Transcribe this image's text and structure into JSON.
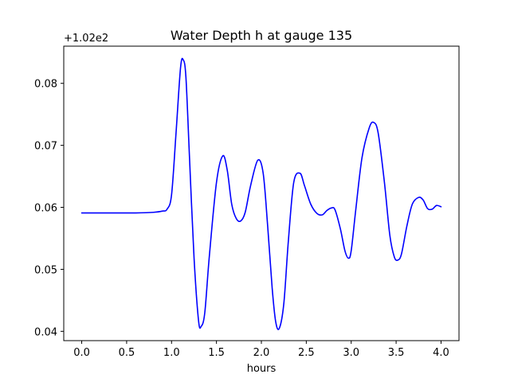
{
  "chart_data": {
    "type": "line",
    "title": "Water Depth h at gauge 135",
    "xlabel": "hours",
    "ylabel": "",
    "y_offset_label": "+1.02e2",
    "xlim": [
      -0.2,
      4.2
    ],
    "ylim": [
      0.0385,
      0.086
    ],
    "x_ticks": [
      0.0,
      0.5,
      1.0,
      1.5,
      2.0,
      2.5,
      3.0,
      3.5,
      4.0
    ],
    "x_tick_labels": [
      "0.0",
      "0.5",
      "1.0",
      "1.5",
      "2.0",
      "2.5",
      "3.0",
      "3.5",
      "4.0"
    ],
    "y_ticks": [
      0.04,
      0.05,
      0.06,
      0.07,
      0.08
    ],
    "y_tick_labels": [
      "0.04",
      "0.05",
      "0.06",
      "0.07",
      "0.08"
    ],
    "grid": false,
    "legend": "none",
    "line_color": "#0000ff",
    "series": [
      {
        "x": [
          0.0,
          0.2,
          0.4,
          0.6,
          0.8,
          0.9,
          0.95,
          1.0,
          1.05,
          1.1,
          1.13,
          1.16,
          1.2,
          1.25,
          1.3,
          1.33,
          1.37,
          1.42,
          1.5,
          1.57,
          1.62,
          1.67,
          1.72,
          1.77,
          1.82,
          1.88,
          1.96,
          2.02,
          2.07,
          2.12,
          2.16,
          2.2,
          2.25,
          2.3,
          2.36,
          2.43,
          2.48,
          2.55,
          2.62,
          2.68,
          2.73,
          2.78,
          2.82,
          2.88,
          2.93,
          2.97,
          3.0,
          3.05,
          3.12,
          3.2,
          3.25,
          3.3,
          3.37,
          3.43,
          3.48,
          3.52,
          3.56,
          3.62,
          3.68,
          3.75,
          3.8,
          3.85,
          3.9,
          3.95,
          4.0
        ],
        "y": [
          0.0591,
          0.0591,
          0.0591,
          0.0591,
          0.0592,
          0.0594,
          0.0597,
          0.062,
          0.072,
          0.0825,
          0.0838,
          0.081,
          0.068,
          0.052,
          0.0418,
          0.0408,
          0.043,
          0.052,
          0.064,
          0.0683,
          0.066,
          0.0605,
          0.0582,
          0.0578,
          0.0592,
          0.0635,
          0.0676,
          0.0655,
          0.057,
          0.047,
          0.0415,
          0.0405,
          0.0445,
          0.0545,
          0.064,
          0.0655,
          0.0635,
          0.0605,
          0.059,
          0.0588,
          0.0595,
          0.0599,
          0.0596,
          0.0565,
          0.053,
          0.0518,
          0.053,
          0.0595,
          0.068,
          0.0728,
          0.0737,
          0.072,
          0.064,
          0.0555,
          0.052,
          0.0515,
          0.0525,
          0.057,
          0.0605,
          0.0616,
          0.0612,
          0.0598,
          0.0597,
          0.0603,
          0.0601
        ]
      }
    ]
  }
}
